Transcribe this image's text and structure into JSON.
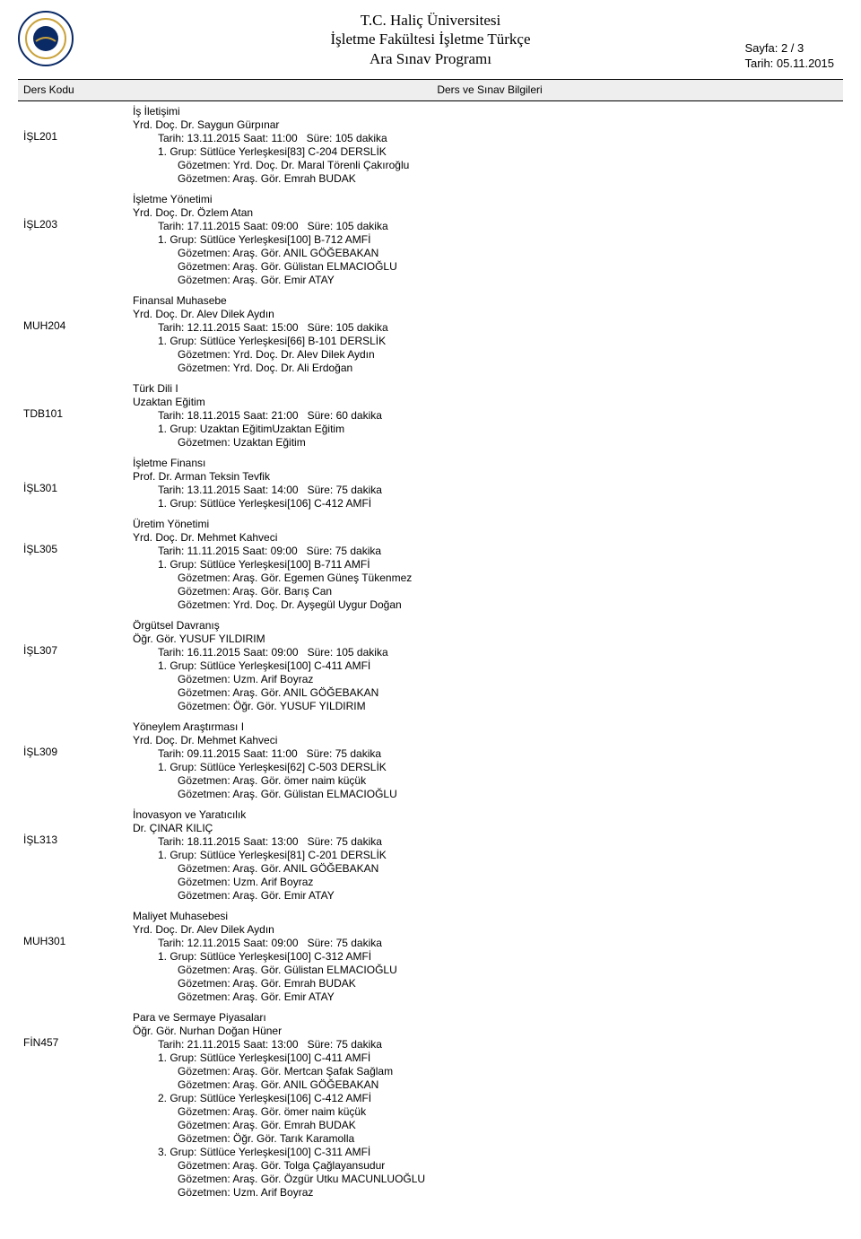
{
  "header": {
    "university": "T.C. Haliç Üniversitesi",
    "faculty": "İşletme Fakültesi İşletme Türkçe",
    "doc_title": "Ara Sınav Programı",
    "page_label": "Sayfa: 2 / 3",
    "date_label": "Tarih: 05.11.2015"
  },
  "columns": {
    "code": "Ders Kodu",
    "info": "Ders ve Sınav Bilgileri"
  },
  "courses": [
    {
      "code": "İŞL201",
      "lines": [
        {
          "t": "İş İletişimi",
          "i": 0
        },
        {
          "t": "Yrd. Doç. Dr. Saygun Gürpınar",
          "i": 0
        },
        {
          "t": "Tarih: 13.11.2015 Saat: 11:00   Süre: 105 dakika",
          "i": 1
        },
        {
          "t": "1. Grup: Sütlüce Yerleşkesi[83] C-204 DERSLİK",
          "i": 1
        },
        {
          "t": "Gözetmen: Yrd. Doç. Dr. Maral Törenli Çakıroğlu",
          "i": 2
        },
        {
          "t": "Gözetmen: Araş. Gör. Emrah BUDAK",
          "i": 2
        }
      ]
    },
    {
      "code": "İŞL203",
      "lines": [
        {
          "t": "İşletme Yönetimi",
          "i": 0
        },
        {
          "t": "Yrd. Doç. Dr. Özlem Atan",
          "i": 0
        },
        {
          "t": "Tarih: 17.11.2015 Saat: 09:00   Süre: 105 dakika",
          "i": 1
        },
        {
          "t": "1. Grup: Sütlüce Yerleşkesi[100] B-712 AMFİ",
          "i": 1
        },
        {
          "t": "Gözetmen: Araş. Gör. ANIL GÖĞEBAKAN",
          "i": 2
        },
        {
          "t": "Gözetmen: Araş. Gör. Gülistan ELMACIOĞLU",
          "i": 2
        },
        {
          "t": "Gözetmen: Araş. Gör. Emir ATAY",
          "i": 2
        }
      ]
    },
    {
      "code": "MUH204",
      "lines": [
        {
          "t": "Finansal Muhasebe",
          "i": 0
        },
        {
          "t": "Yrd. Doç. Dr. Alev Dilek Aydın",
          "i": 0
        },
        {
          "t": "Tarih: 12.11.2015 Saat: 15:00   Süre: 105 dakika",
          "i": 1
        },
        {
          "t": "1. Grup: Sütlüce Yerleşkesi[66] B-101 DERSLİK",
          "i": 1
        },
        {
          "t": "Gözetmen: Yrd. Doç. Dr. Alev Dilek Aydın",
          "i": 2
        },
        {
          "t": "Gözetmen: Yrd. Doç. Dr. Ali Erdoğan",
          "i": 2
        }
      ]
    },
    {
      "code": "TDB101",
      "lines": [
        {
          "t": "Türk Dili I",
          "i": 0
        },
        {
          "t": "Uzaktan Eğitim",
          "i": 0
        },
        {
          "t": "Tarih: 18.11.2015 Saat: 21:00   Süre: 60 dakika",
          "i": 1
        },
        {
          "t": "1. Grup: Uzaktan EğitimUzaktan Eğitim",
          "i": 1
        },
        {
          "t": "Gözetmen: Uzaktan Eğitim",
          "i": 2
        }
      ]
    },
    {
      "code": "İŞL301",
      "lines": [
        {
          "t": "İşletme Finansı",
          "i": 0
        },
        {
          "t": "Prof. Dr. Arman Teksin Tevfik",
          "i": 0
        },
        {
          "t": "Tarih: 13.11.2015 Saat: 14:00   Süre: 75 dakika",
          "i": 1
        },
        {
          "t": "1. Grup: Sütlüce Yerleşkesi[106] C-412 AMFİ",
          "i": 1
        }
      ]
    },
    {
      "code": "İŞL305",
      "lines": [
        {
          "t": "Üretim Yönetimi",
          "i": 0
        },
        {
          "t": "Yrd. Doç. Dr. Mehmet Kahveci",
          "i": 0
        },
        {
          "t": "Tarih: 11.11.2015 Saat: 09:00   Süre: 75 dakika",
          "i": 1
        },
        {
          "t": "1. Grup: Sütlüce Yerleşkesi[100] B-711 AMFİ",
          "i": 1
        },
        {
          "t": "Gözetmen: Araş. Gör. Egemen Güneş Tükenmez",
          "i": 2
        },
        {
          "t": "Gözetmen: Araş. Gör. Barış Can",
          "i": 2
        },
        {
          "t": "Gözetmen: Yrd. Doç. Dr. Ayşegül Uygur Doğan",
          "i": 2
        }
      ]
    },
    {
      "code": "İŞL307",
      "lines": [
        {
          "t": "Örgütsel Davranış",
          "i": 0
        },
        {
          "t": "Öğr. Gör. YUSUF YILDIRIM",
          "i": 0
        },
        {
          "t": "Tarih: 16.11.2015 Saat: 09:00   Süre: 105 dakika",
          "i": 1
        },
        {
          "t": "1. Grup: Sütlüce Yerleşkesi[100] C-411 AMFİ",
          "i": 1
        },
        {
          "t": "Gözetmen: Uzm. Arif Boyraz",
          "i": 2
        },
        {
          "t": "Gözetmen: Araş. Gör. ANIL GÖĞEBAKAN",
          "i": 2
        },
        {
          "t": "Gözetmen: Öğr. Gör. YUSUF YILDIRIM",
          "i": 2
        }
      ]
    },
    {
      "code": "İŞL309",
      "lines": [
        {
          "t": "Yöneylem Araştırması I",
          "i": 0
        },
        {
          "t": "Yrd. Doç. Dr. Mehmet Kahveci",
          "i": 0
        },
        {
          "t": "Tarih: 09.11.2015 Saat: 11:00   Süre: 75 dakika",
          "i": 1
        },
        {
          "t": "1. Grup: Sütlüce Yerleşkesi[62] C-503 DERSLİK",
          "i": 1
        },
        {
          "t": "Gözetmen: Araş. Gör. ömer naim küçük",
          "i": 2
        },
        {
          "t": "Gözetmen: Araş. Gör. Gülistan ELMACIOĞLU",
          "i": 2
        }
      ]
    },
    {
      "code": "İŞL313",
      "lines": [
        {
          "t": "İnovasyon ve Yaratıcılık",
          "i": 0
        },
        {
          "t": "Dr. ÇINAR KILIÇ",
          "i": 0
        },
        {
          "t": "Tarih: 18.11.2015 Saat: 13:00   Süre: 75 dakika",
          "i": 1
        },
        {
          "t": "1. Grup: Sütlüce Yerleşkesi[81] C-201 DERSLİK",
          "i": 1
        },
        {
          "t": "Gözetmen: Araş. Gör. ANIL GÖĞEBAKAN",
          "i": 2
        },
        {
          "t": "Gözetmen: Uzm. Arif Boyraz",
          "i": 2
        },
        {
          "t": "Gözetmen: Araş. Gör. Emir ATAY",
          "i": 2
        }
      ]
    },
    {
      "code": "MUH301",
      "lines": [
        {
          "t": "Maliyet Muhasebesi",
          "i": 0
        },
        {
          "t": "Yrd. Doç. Dr. Alev Dilek Aydın",
          "i": 0
        },
        {
          "t": "Tarih: 12.11.2015 Saat: 09:00   Süre: 75 dakika",
          "i": 1
        },
        {
          "t": "1. Grup: Sütlüce Yerleşkesi[100] C-312 AMFİ",
          "i": 1
        },
        {
          "t": "Gözetmen: Araş. Gör. Gülistan ELMACIOĞLU",
          "i": 2
        },
        {
          "t": "Gözetmen: Araş. Gör. Emrah BUDAK",
          "i": 2
        },
        {
          "t": "Gözetmen: Araş. Gör. Emir ATAY",
          "i": 2
        }
      ]
    },
    {
      "code": "FİN457",
      "lines": [
        {
          "t": "Para ve Sermaye Piyasaları",
          "i": 0
        },
        {
          "t": "Öğr. Gör. Nurhan Doğan Hüner",
          "i": 0
        },
        {
          "t": "Tarih: 21.11.2015 Saat: 13:00   Süre: 75 dakika",
          "i": 1
        },
        {
          "t": "1. Grup: Sütlüce Yerleşkesi[100] C-411 AMFİ",
          "i": 1
        },
        {
          "t": "Gözetmen: Araş. Gör. Mertcan Şafak Sağlam",
          "i": 2
        },
        {
          "t": "Gözetmen: Araş. Gör. ANIL GÖĞEBAKAN",
          "i": 2
        },
        {
          "t": "2. Grup: Sütlüce Yerleşkesi[106] C-412 AMFİ",
          "i": 1
        },
        {
          "t": "Gözetmen: Araş. Gör. ömer naim küçük",
          "i": 2
        },
        {
          "t": "Gözetmen: Araş. Gör. Emrah BUDAK",
          "i": 2
        },
        {
          "t": "Gözetmen: Öğr. Gör. Tarık Karamolla",
          "i": 2
        },
        {
          "t": "3. Grup: Sütlüce Yerleşkesi[100] C-311 AMFİ",
          "i": 1
        },
        {
          "t": "Gözetmen: Araş. Gör. Tolga Çağlayansudur",
          "i": 2
        },
        {
          "t": "Gözetmen: Araş. Gör. Özgür Utku MACUNLUOĞLU",
          "i": 2
        },
        {
          "t": "Gözetmen: Uzm. Arif Boyraz",
          "i": 2
        }
      ]
    }
  ]
}
